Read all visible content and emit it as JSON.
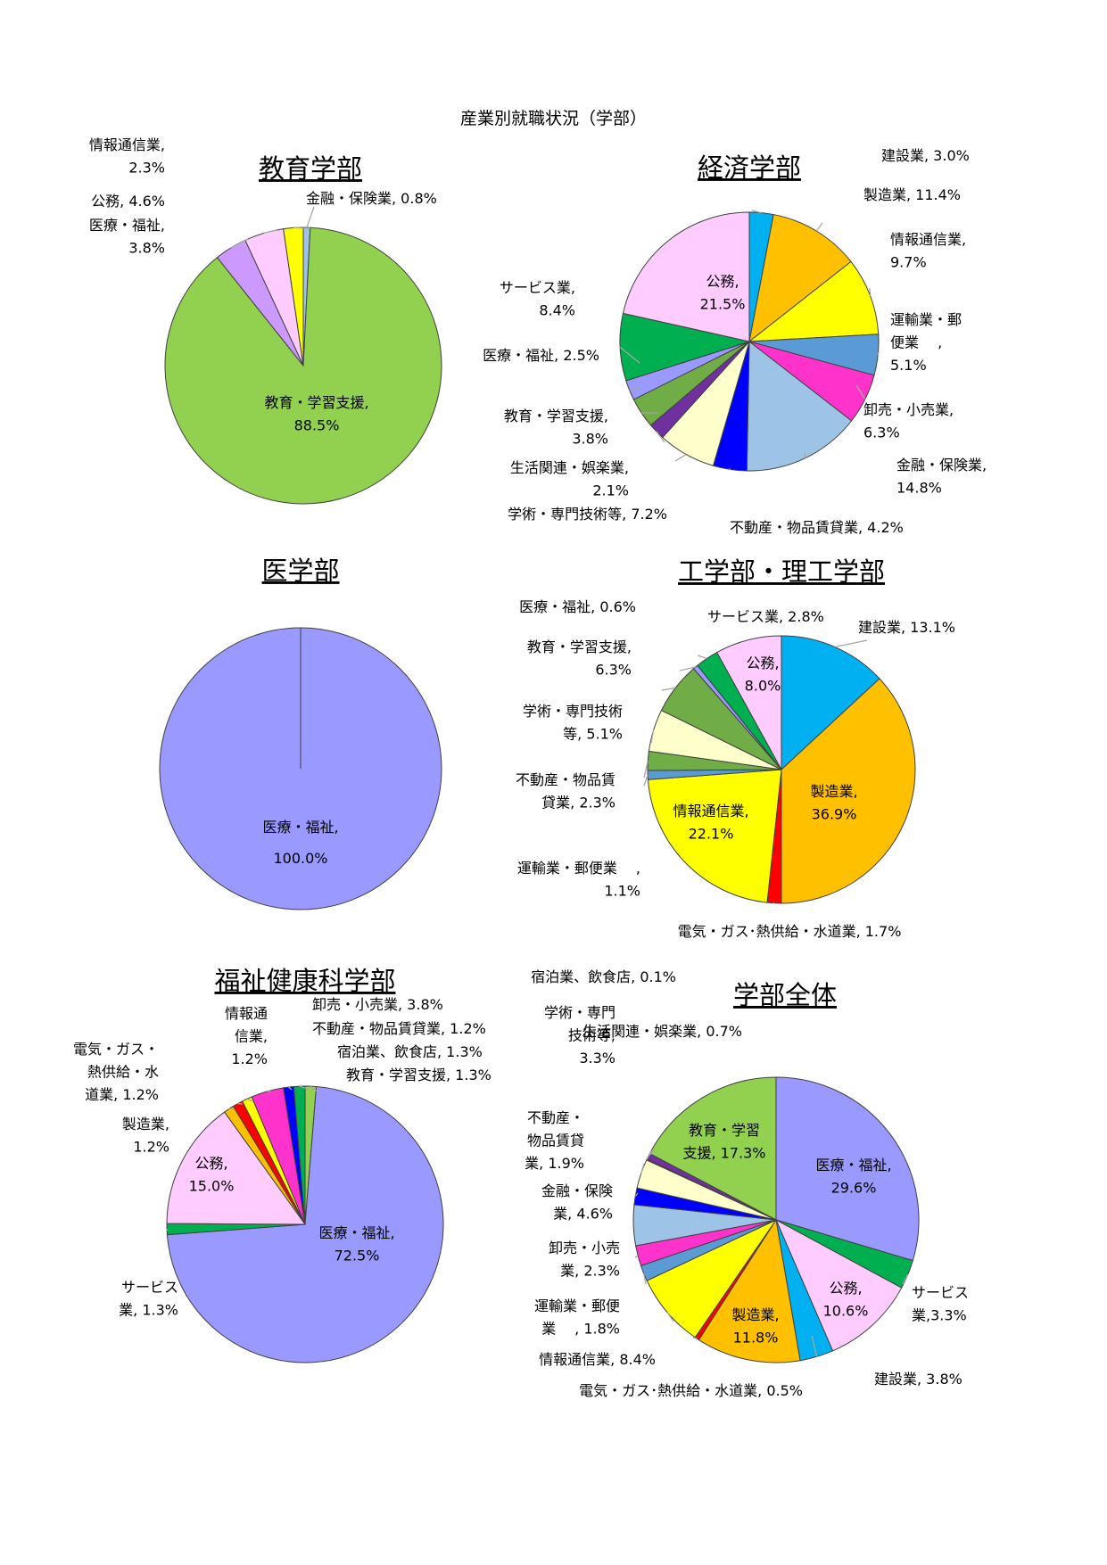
{
  "page_title": "産業別就職状況（学部）",
  "chart_data": [
    {
      "type": "pie",
      "title": "教育学部",
      "slices": [
        {
          "name": "金融・保険業",
          "value": 0.8,
          "value_text": "0.8%",
          "color": "#9dc3e6",
          "label_lines": [
            "金融・保険業, 0.8%"
          ]
        },
        {
          "name": "教育・学習支援",
          "value": 88.5,
          "value_text": "88.5%",
          "color": "#92d050",
          "label_lines": [
            "教育・学習支援,",
            "88.5%"
          ]
        },
        {
          "name": "医療・福祉",
          "value": 3.8,
          "value_text": "3.8%",
          "color": "#cc99ff",
          "label_lines": [
            "医療・福祉,",
            "3.8%"
          ]
        },
        {
          "name": "公務",
          "value": 4.6,
          "value_text": "4.6%",
          "color": "#ffccff",
          "label_lines": [
            "公務, 4.6%"
          ]
        },
        {
          "name": "情報通信業",
          "value": 2.3,
          "value_text": "2.3%",
          "color": "#ffff00",
          "label_lines": [
            "情報通信業,",
            "2.3%"
          ]
        }
      ]
    },
    {
      "type": "pie",
      "title": "経済学部",
      "slices": [
        {
          "name": "建設業",
          "value": 3.0,
          "value_text": "3.0%",
          "color": "#00b0f0",
          "label_lines": [
            "建設業, 3.0%"
          ]
        },
        {
          "name": "製造業",
          "value": 11.4,
          "value_text": "11.4%",
          "color": "#ffc000",
          "label_lines": [
            "製造業, 11.4%"
          ]
        },
        {
          "name": "情報通信業",
          "value": 9.7,
          "value_text": "9.7%",
          "color": "#ffff00",
          "label_lines": [
            "情報通信業,",
            "9.7%"
          ]
        },
        {
          "name": "運輸業・郵便業",
          "value": 5.1,
          "value_text": "5.1%",
          "color": "#5b9bd5",
          "label_lines": [
            "運輸業・郵",
            "便業　 ,",
            "5.1%"
          ]
        },
        {
          "name": "卸売・小売業",
          "value": 6.3,
          "value_text": "6.3%",
          "color": "#ff33cc",
          "label_lines": [
            "卸売・小売業,",
            "6.3%"
          ]
        },
        {
          "name": "金融・保険業",
          "value": 14.8,
          "value_text": "14.8%",
          "color": "#9dc3e6",
          "label_lines": [
            "金融・保険業,",
            "14.8%"
          ]
        },
        {
          "name": "不動産・物品賃貸業",
          "value": 4.2,
          "value_text": "4.2%",
          "color": "#0000ff",
          "label_lines": [
            "不動産・物品賃貸業, 4.2%"
          ]
        },
        {
          "name": "学術・専門技術等",
          "value": 7.2,
          "value_text": "7.2%",
          "color": "#ffffcc",
          "label_lines": [
            "学術・専門技術等, 7.2%"
          ]
        },
        {
          "name": "生活関連・娯楽業",
          "value": 2.1,
          "value_text": "2.1%",
          "color": "#7030a0",
          "label_lines": [
            "生活関連・娯楽業,",
            "2.1%"
          ]
        },
        {
          "name": "教育・学習支援",
          "value": 3.8,
          "value_text": "3.8%",
          "color": "#70ad47",
          "label_lines": [
            "教育・学習支援,",
            "3.8%"
          ]
        },
        {
          "name": "医療・福祉",
          "value": 2.5,
          "value_text": "2.5%",
          "color": "#9999ff",
          "label_lines": [
            "医療・福祉, 2.5%"
          ]
        },
        {
          "name": "サービス業",
          "value": 8.4,
          "value_text": "8.4%",
          "color": "#00b050",
          "label_lines": [
            "サービス業,",
            "8.4%"
          ]
        },
        {
          "name": "公務",
          "value": 21.5,
          "value_text": "21.5%",
          "color": "#ffccff",
          "label_lines": [
            "公務,",
            "21.5%"
          ]
        }
      ]
    },
    {
      "type": "pie",
      "title": "医学部",
      "slices": [
        {
          "name": "医療・福祉",
          "value": 100.0,
          "value_text": "100.0%",
          "color": "#9999ff",
          "label_lines": [
            "医療・福祉,",
            "100.0%"
          ]
        }
      ]
    },
    {
      "type": "pie",
      "title": "工学部・理工学部",
      "slices": [
        {
          "name": "建設業",
          "value": 13.1,
          "value_text": "13.1%",
          "color": "#00b0f0",
          "label_lines": [
            "建設業, 13.1%"
          ]
        },
        {
          "name": "製造業",
          "value": 36.9,
          "value_text": "36.9%",
          "color": "#ffc000",
          "label_lines": [
            "製造業,",
            "36.9%"
          ]
        },
        {
          "name": "電気・ガス･熱供給・水道業",
          "value": 1.7,
          "value_text": "1.7%",
          "color": "#ff0000",
          "label_lines": [
            "電気・ガス･熱供給・水道業, 1.7%"
          ]
        },
        {
          "name": "情報通信業",
          "value": 22.1,
          "value_text": "22.1%",
          "color": "#ffff00",
          "label_lines": [
            "情報通信業,",
            "22.1%"
          ]
        },
        {
          "name": "運輸業・郵便業",
          "value": 1.1,
          "value_text": "1.1%",
          "color": "#5b9bd5",
          "label_lines": [
            "運輸業・郵便業　 ,",
            "1.1%"
          ]
        },
        {
          "name": "不動産・物品賃貸業",
          "value": 2.3,
          "value_text": "2.3%",
          "color": "#70ad47",
          "label_lines": [
            "不動産・物品賃",
            "貸業, 2.3%"
          ]
        },
        {
          "name": "学術・専門技術等",
          "value": 5.1,
          "value_text": "5.1%",
          "color": "#ffffcc",
          "label_lines": [
            "学術・専門技術",
            "等, 5.1%"
          ]
        },
        {
          "name": "教育・学習支援",
          "value": 6.3,
          "value_text": "6.3%",
          "color": "#70ad47",
          "label_lines": [
            "教育・学習支援,",
            "6.3%"
          ]
        },
        {
          "name": "医療・福祉",
          "value": 0.6,
          "value_text": "0.6%",
          "color": "#9999ff",
          "label_lines": [
            "医療・福祉, 0.6%"
          ]
        },
        {
          "name": "サービス業",
          "value": 2.8,
          "value_text": "2.8%",
          "color": "#00b050",
          "label_lines": [
            "サービス業, 2.8%"
          ]
        },
        {
          "name": "公務",
          "value": 8.0,
          "value_text": "8.0%",
          "color": "#ffccff",
          "label_lines": [
            "公務,",
            "8.0%"
          ]
        }
      ]
    },
    {
      "type": "pie",
      "title": "福祉健康科学部",
      "slices": [
        {
          "name": "教育・学習支援",
          "value": 1.3,
          "value_text": "1.3%",
          "color": "#92d050",
          "label_lines": [
            "教育・学習支援, 1.3%"
          ]
        },
        {
          "name": "医療・福祉",
          "value": 72.5,
          "value_text": "72.5%",
          "color": "#9999ff",
          "label_lines": [
            "医療・福祉,",
            "72.5%"
          ]
        },
        {
          "name": "サービス業",
          "value": 1.3,
          "value_text": "1.3%",
          "color": "#00b050",
          "label_lines": [
            "サービス",
            "業, 1.3%"
          ]
        },
        {
          "name": "公務",
          "value": 15.0,
          "value_text": "15.0%",
          "color": "#ffccff",
          "label_lines": [
            "公務,",
            "15.0%"
          ]
        },
        {
          "name": "製造業",
          "value": 1.2,
          "value_text": "1.2%",
          "color": "#ffc000",
          "label_lines": [
            "製造業,",
            "1.2%"
          ]
        },
        {
          "name": "電気・ガス・熱供給・水道業",
          "value": 1.2,
          "value_text": "1.2%",
          "color": "#ff0000",
          "label_lines": [
            "電気・ガス・",
            "熱供給・水",
            "道業, 1.2%"
          ]
        },
        {
          "name": "情報通信業",
          "value": 1.2,
          "value_text": "1.2%",
          "color": "#ffff00",
          "label_lines": [
            "情報通",
            "信業,",
            "1.2%"
          ]
        },
        {
          "name": "卸売・小売業",
          "value": 3.8,
          "value_text": "3.8%",
          "color": "#ff33cc",
          "label_lines": [
            "卸売・小売業, 3.8%"
          ]
        },
        {
          "name": "不動産・物品賃貸業",
          "value": 1.2,
          "value_text": "1.2%",
          "color": "#0000ff",
          "label_lines": [
            "不動産・物品賃貸業, 1.2%"
          ]
        },
        {
          "name": "宿泊業、飲食店",
          "value": 1.3,
          "value_text": "1.3%",
          "color": "#00b050",
          "label_lines": [
            "宿泊業、飲食店, 1.3%"
          ]
        }
      ]
    },
    {
      "type": "pie",
      "title": "学部全体",
      "slices": [
        {
          "name": "医療・福祉",
          "value": 29.6,
          "value_text": "29.6%",
          "color": "#9999ff",
          "label_lines": [
            "医療・福祉,",
            "29.6%"
          ]
        },
        {
          "name": "サービス業",
          "value": 3.3,
          "value_text": "3.3%",
          "color": "#00b050",
          "label_lines": [
            "サービス",
            "業,3.3%"
          ]
        },
        {
          "name": "公務",
          "value": 10.6,
          "value_text": "10.6%",
          "color": "#ffccff",
          "label_lines": [
            "公務,",
            "10.6%"
          ]
        },
        {
          "name": "建設業",
          "value": 3.8,
          "value_text": "3.8%",
          "color": "#00b0f0",
          "label_lines": [
            "建設業, 3.8%"
          ]
        },
        {
          "name": "製造業",
          "value": 11.8,
          "value_text": "11.8%",
          "color": "#ffc000",
          "label_lines": [
            "製造業,",
            "11.8%"
          ]
        },
        {
          "name": "電気・ガス･熱供給・水道業",
          "value": 0.5,
          "value_text": "0.5%",
          "color": "#ff0000",
          "label_lines": [
            "電気・ガス･熱供給・水道業, 0.5%"
          ]
        },
        {
          "name": "情報通信業",
          "value": 8.4,
          "value_text": "8.4%",
          "color": "#ffff00",
          "label_lines": [
            "情報通信業, 8.4%"
          ]
        },
        {
          "name": "運輸業・郵便業",
          "value": 1.8,
          "value_text": "1.8%",
          "color": "#5b9bd5",
          "label_lines": [
            "運輸業・郵便",
            "業　 , 1.8%"
          ]
        },
        {
          "name": "卸売・小売業",
          "value": 2.3,
          "value_text": "2.3%",
          "color": "#ff33cc",
          "label_lines": [
            "卸売・小売",
            "業, 2.3%"
          ]
        },
        {
          "name": "金融・保険業",
          "value": 4.6,
          "value_text": "4.6%",
          "color": "#9dc3e6",
          "label_lines": [
            "金融・保険",
            "業, 4.6%"
          ]
        },
        {
          "name": "不動産・物品賃貸業",
          "value": 1.9,
          "value_text": "1.9%",
          "color": "#0000ff",
          "label_lines": [
            "不動産・",
            "物品賃貸",
            "業, 1.9%"
          ]
        },
        {
          "name": "学術・専門技術等",
          "value": 3.3,
          "value_text": "3.3%",
          "color": "#ffffcc",
          "label_lines": [
            "学術・専門",
            "技術等,",
            "3.3%"
          ]
        },
        {
          "name": "宿泊業、飲食店",
          "value": 0.1,
          "value_text": "0.1%",
          "color": "#ffc000",
          "label_lines": [
            "宿泊業、飲食店, 0.1%"
          ]
        },
        {
          "name": "生活関連・娯楽業",
          "value": 0.7,
          "value_text": "0.7%",
          "color": "#7030a0",
          "label_lines": [
            "生活関連・娯楽業, 0.7%"
          ]
        },
        {
          "name": "教育・学習支援",
          "value": 17.3,
          "value_text": "17.3%",
          "color": "#92d050",
          "label_lines": [
            "教育・学習",
            "支援, 17.3%"
          ]
        }
      ]
    }
  ]
}
